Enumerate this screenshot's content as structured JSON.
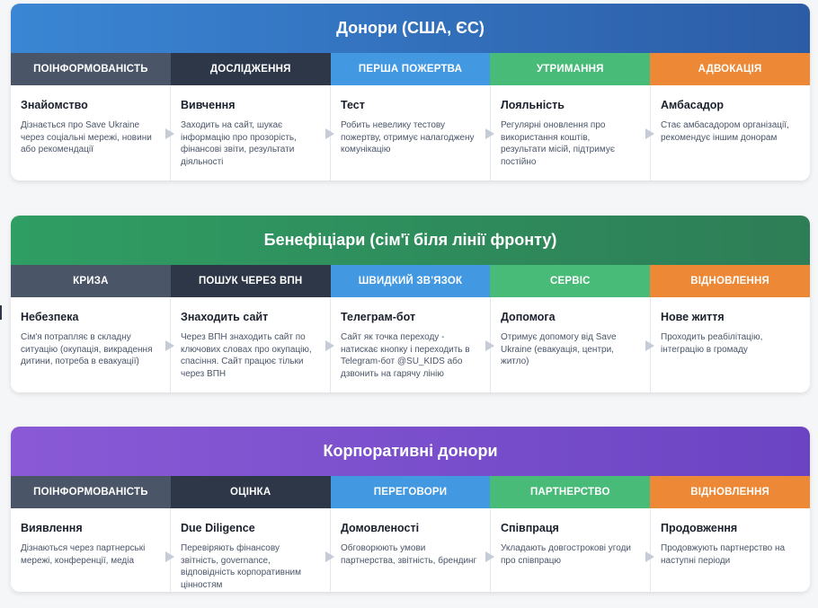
{
  "journeys": [
    {
      "title": "Донори (США, ЄС)",
      "stages": [
        "ПОІНФОРМОВАНІСТЬ",
        "ДОСЛІДЖЕННЯ",
        "ПЕРША ПОЖЕРТВА",
        "УТРИМАННЯ",
        "АДВОКАЦІЯ"
      ],
      "cards": [
        {
          "title": "Знайомство",
          "desc": "Дізнається про Save Ukraine через соціальні мережі, новини або рекомендації"
        },
        {
          "title": "Вивчення",
          "desc": "Заходить на сайт, шукає інформацію про прозорість, фінансові звіти, результати діяльності"
        },
        {
          "title": "Тест",
          "desc": "Робить невелику тестову пожертву, отримує налагоджену комунікацію"
        },
        {
          "title": "Лояльність",
          "desc": "Регулярні оновлення про використання коштів, результати місій, підтримує постійно"
        },
        {
          "title": "Амбасадор",
          "desc": "Стає амбасадором організації, рекомендує іншим донорам"
        }
      ]
    },
    {
      "title": "Бенефіціари (сім'ї біля лінії фронту)",
      "stages": [
        "КРИЗА",
        "ПОШУК ЧЕРЕЗ ВПН",
        "ШВИДКИЙ ЗВ'ЯЗОК",
        "СЕРВІС",
        "ВІДНОВЛЕННЯ"
      ],
      "cards": [
        {
          "title": "Небезпека",
          "desc": "Сім'я потрапляє в складну ситуацію (окупація, викрадення дитини, потреба в евакуації)"
        },
        {
          "title": "Знаходить сайт",
          "desc": "Через ВПН знаходить сайт по ключових словах про окупацію, спасіння. Сайт працює тільки через ВПН"
        },
        {
          "title": "Телеграм-бот",
          "desc": "Сайт як точка переходу - натискає кнопку і переходить в Telegram-бот @SU_KIDS або дзвонить на гарячу лінію"
        },
        {
          "title": "Допомога",
          "desc": "Отримує допомогу від Save Ukraine (евакуація, центри, житло)"
        },
        {
          "title": "Нове життя",
          "desc": "Проходить реабілітацію, інтеграцію в громаду"
        }
      ]
    },
    {
      "title": "Корпоративні донори",
      "stages": [
        "ПОІНФОРМОВАНІСТЬ",
        "ОЦІНКА",
        "ПЕРЕГОВОРИ",
        "ПАРТНЕРСТВО",
        "ВІДНОВЛЕННЯ"
      ],
      "cards": [
        {
          "title": "Виявлення",
          "desc": "Дізнаються через партнерські мережі, конференції, медіа"
        },
        {
          "title": "Due Diligence",
          "desc": "Перевіряють фінансову звітність, governance, відповідність корпоративним цінностям"
        },
        {
          "title": "Домовленості",
          "desc": "Обговорюють умови партнерства, звітність, брендинг"
        },
        {
          "title": "Співпраця",
          "desc": "Укладають довгострокові угоди про співпрацю"
        },
        {
          "title": "Продовження",
          "desc": "Продовжують партнерство на наступні періоди"
        }
      ]
    }
  ],
  "colors": {
    "stage_1": "#4a5568",
    "stage_2": "#2d3748",
    "stage_3": "#4299e1",
    "stage_4": "#48bb78",
    "stage_5": "#ed8936",
    "donors_header": "#3a86d4",
    "beneficiaries_header": "#2f9e63",
    "corporate_header": "#8a5ad6"
  }
}
